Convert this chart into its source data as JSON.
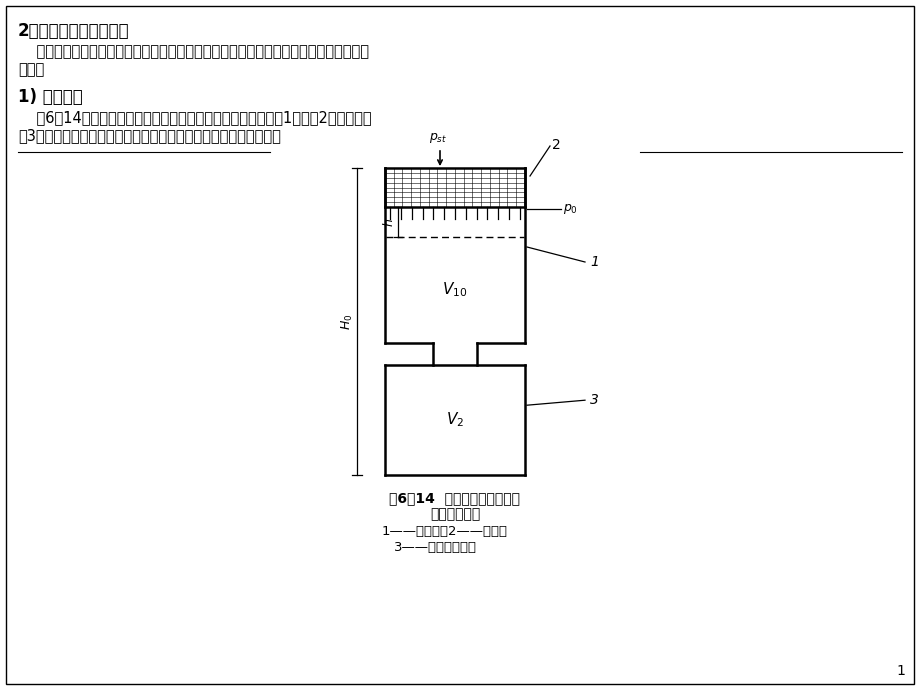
{
  "title": "2．空气弹簧的基本原理",
  "para1_indent": "    为了便于分析和了解空气弹簧的工作特性，现以最简单的套筒式空气弹簧来说明其基本",
  "para1_cont": "原理。",
  "subtitle": "1) 基本结构",
  "para2_indent": "    图6－14是套筒式空气弹簧的工作原理示意图，它是由工作缸1、活塞2和附加空气",
  "para2_cont": "室3组成的。这种空气弹簧是利用空气的可压缩性来实现其弹性的。",
  "fig_caption_line1": "图6－14  套筒式空气弹簧的工",
  "fig_caption_line2": "作原理示意图",
  "fig_caption_line3": "1——工作缸；2——活塞，",
  "fig_caption_line4": "3——附加空气室。",
  "page_number": "1",
  "bg_color": "#ffffff",
  "text_color": "#000000"
}
